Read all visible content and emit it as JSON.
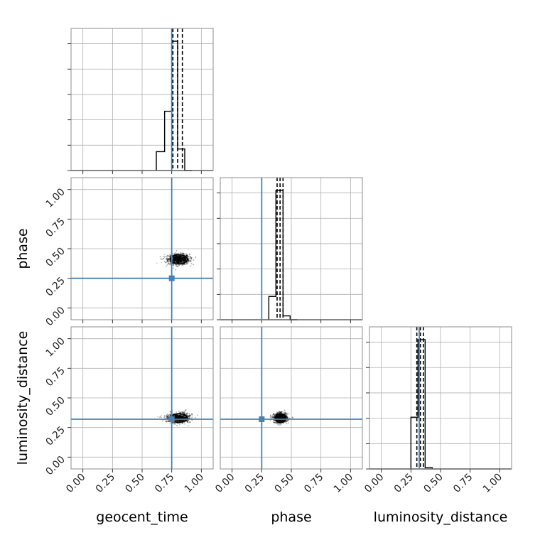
{
  "chart_data": {
    "type": "corner",
    "parameters": [
      "geocent_time",
      "phase",
      "luminosity_distance"
    ],
    "axis_range": [
      -0.1,
      1.1
    ],
    "ticks": [
      0.0,
      0.25,
      0.5,
      0.75,
      1.0
    ],
    "tick_labels": [
      "0.00",
      "0.25",
      "0.50",
      "0.75",
      "1.00"
    ],
    "grid": true,
    "colors": {
      "truth": "#4682b4",
      "hist": "#000000",
      "samples": "#000000"
    },
    "truths": {
      "geocent_time": 0.75,
      "phase": 0.25,
      "luminosity_distance": 0.32
    },
    "histograms": {
      "geocent_time": {
        "edges": [
          0.62,
          0.69,
          0.75,
          0.8,
          0.86,
          0.92
        ],
        "heights": [
          0.14,
          0.44,
          0.96,
          0.16,
          0.0
        ],
        "quantiles": [
          0.76,
          0.8,
          0.84
        ]
      },
      "phase": {
        "edges": [
          0.31,
          0.37,
          0.43,
          0.49,
          0.55
        ],
        "heights": [
          0.18,
          1.0,
          0.03,
          0.0
        ],
        "quantiles": [
          0.38,
          0.405,
          0.43
        ]
      },
      "luminosity_distance": {
        "edges": [
          0.25,
          0.31,
          0.37,
          0.43
        ],
        "heights": [
          0.4,
          1.0,
          0.01
        ],
        "quantiles": [
          0.3,
          0.33,
          0.355
        ]
      }
    },
    "scatter": {
      "phase_vs_geocent_time": {
        "x_mean": 0.81,
        "y_mean": 0.41,
        "x_sd": 0.045,
        "y_sd": 0.022,
        "x_tail": 0.62
      },
      "luminosity_distance_vs_geocent_time": {
        "x_mean": 0.81,
        "y_mean": 0.33,
        "x_sd": 0.045,
        "y_sd": 0.02,
        "x_tail": 0.62
      },
      "luminosity_distance_vs_phase": {
        "x_mean": 0.41,
        "y_mean": 0.33,
        "x_sd": 0.028,
        "y_sd": 0.02,
        "x_tail": 0.35
      }
    }
  }
}
